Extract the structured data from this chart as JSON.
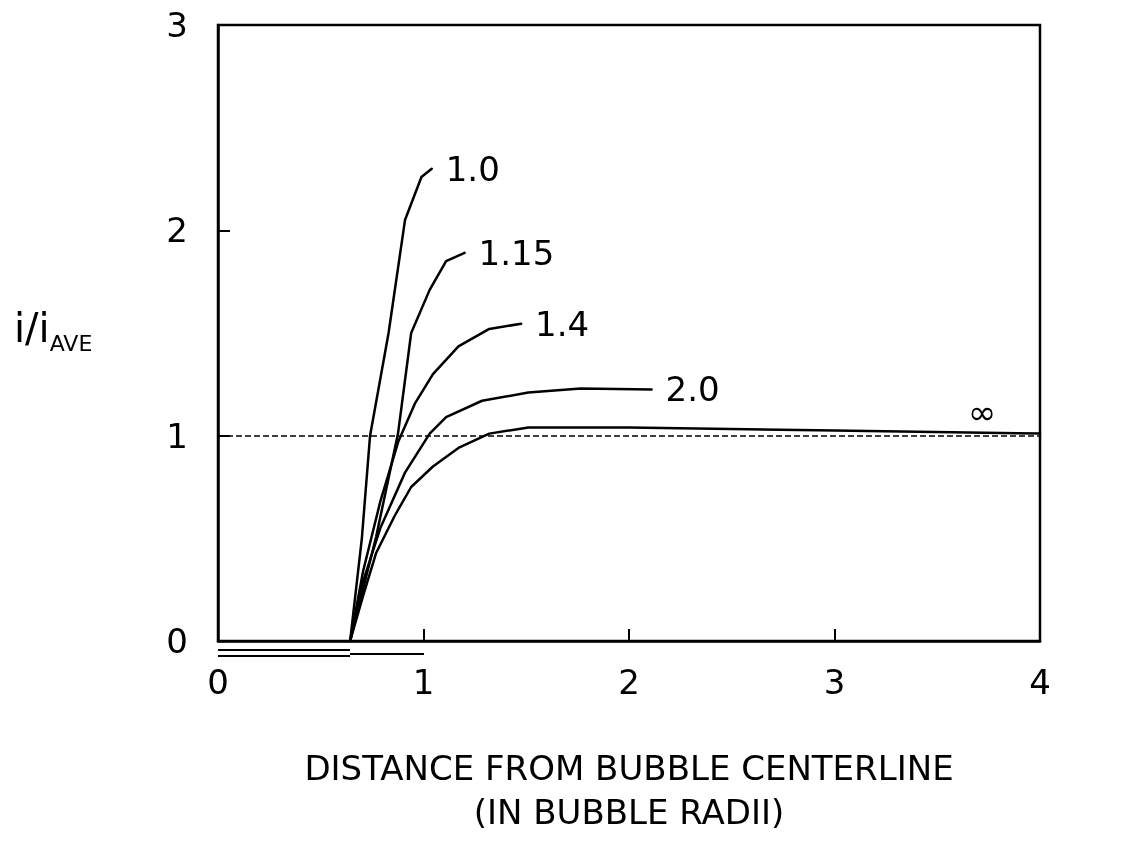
{
  "chart_data": {
    "type": "line",
    "xlabel": "DISTANCE FROM BUBBLE CENTERLINE\n(IN BUBBLE RADII)",
    "ylabel": "i/i$_{AVE}$",
    "xlim": [
      0,
      4
    ],
    "xticks": [
      0,
      1,
      2,
      3,
      4
    ],
    "ylim": [
      0,
      3
    ],
    "yticks": [
      0,
      1,
      2,
      3
    ],
    "grid": false,
    "legend": false,
    "marker": "none",
    "line_style": "solid",
    "ref_lines": [
      {
        "axis": "y",
        "value": 1,
        "line_style": "dashed",
        "color": "#000000"
      }
    ],
    "series": [
      {
        "name": "1.0",
        "color": "#000000",
        "x": [
          0.643,
          0.7,
          0.74,
          0.83,
          0.91,
          0.99,
          1.04
        ],
        "values": [
          0,
          0.5,
          1.0,
          1.5,
          2.05,
          2.26,
          2.3
        ]
      },
      {
        "name": "1.15",
        "color": "#000000",
        "x": [
          0.643,
          0.77,
          0.876,
          0.94,
          1.03,
          1.11,
          1.2
        ],
        "values": [
          0,
          0.51,
          1.01,
          1.5,
          1.71,
          1.85,
          1.89
        ]
      },
      {
        "name": "1.4",
        "color": "#000000",
        "x": [
          0.643,
          0.706,
          0.79,
          0.877,
          0.96,
          1.046,
          1.17,
          1.32,
          1.475
        ],
        "values": [
          0,
          0.34,
          0.68,
          0.97,
          1.16,
          1.3,
          1.435,
          1.52,
          1.545
        ]
      },
      {
        "name": "2.0",
        "color": "#000000",
        "x": [
          0.643,
          0.706,
          0.79,
          0.91,
          1.03,
          1.11,
          1.285,
          1.51,
          1.765,
          2.11
        ],
        "values": [
          0,
          0.29,
          0.55,
          0.82,
          1.01,
          1.09,
          1.17,
          1.21,
          1.23,
          1.225
        ]
      },
      {
        "name": "∞",
        "color": "#000000",
        "x": [
          0.643,
          0.706,
          0.77,
          0.86,
          0.94,
          1.046,
          1.17,
          1.32,
          1.51,
          2.0,
          3.0,
          4.0
        ],
        "values": [
          0,
          0.22,
          0.43,
          0.61,
          0.75,
          0.85,
          0.94,
          1.01,
          1.04,
          1.04,
          1.025,
          1.01
        ]
      }
    ]
  }
}
